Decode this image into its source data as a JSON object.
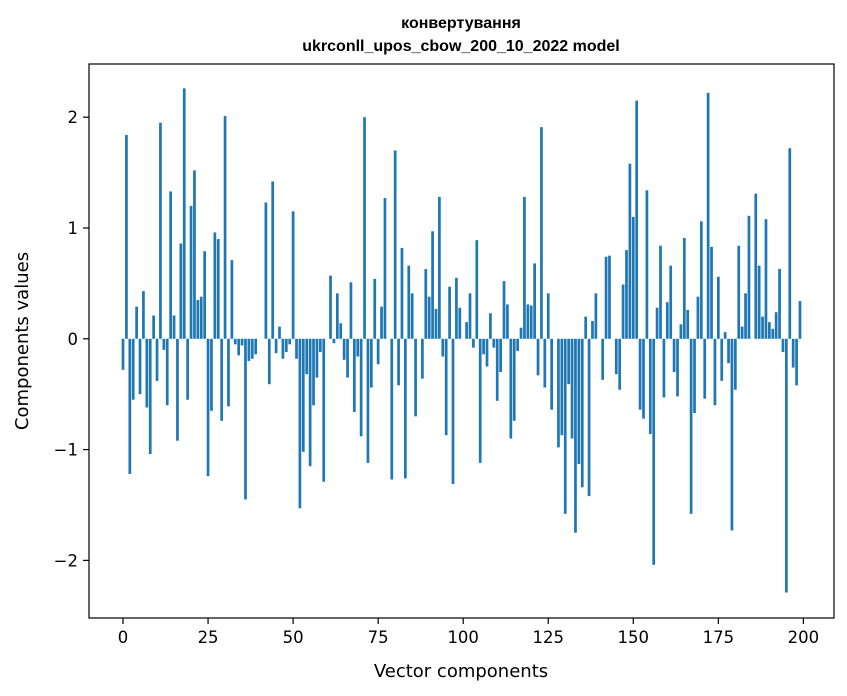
{
  "chart_data": {
    "type": "bar",
    "title_lines": [
      "конвертування",
      "ukrconll_upos_cbow_200_10_2022 model"
    ],
    "xlabel": "Vector components",
    "ylabel": "Components values",
    "xlim": [
      -10,
      209
    ],
    "ylim": [
      -2.52,
      2.48
    ],
    "xticks": [
      0,
      25,
      50,
      75,
      100,
      125,
      150,
      175,
      200
    ],
    "yticks": [
      -2,
      -1,
      0,
      1,
      2
    ],
    "ytick_labels": [
      "−2",
      "−1",
      "0",
      "1",
      "2"
    ],
    "bar_color": "#1f77b4",
    "values": [
      -0.28,
      1.84,
      -1.22,
      -0.55,
      0.29,
      -0.5,
      0.43,
      -0.62,
      -1.04,
      0.21,
      -0.38,
      1.95,
      -0.1,
      -0.6,
      1.33,
      0.21,
      -0.92,
      0.86,
      2.26,
      -0.55,
      1.2,
      1.52,
      0.35,
      0.38,
      0.79,
      -1.24,
      -0.65,
      0.96,
      0.9,
      -0.74,
      2.01,
      -0.61,
      0.71,
      -0.05,
      -0.15,
      -0.06,
      -1.45,
      -0.2,
      -0.18,
      -0.14,
      0.0,
      0.0,
      1.23,
      -0.41,
      1.42,
      -0.13,
      0.11,
      -0.18,
      -0.12,
      -0.05,
      1.15,
      -0.18,
      -1.53,
      -1.02,
      -0.32,
      -1.15,
      -0.6,
      -0.35,
      -0.12,
      -1.29,
      0.0,
      0.57,
      -0.04,
      0.41,
      0.14,
      -0.19,
      -0.35,
      0.51,
      -0.66,
      -0.16,
      -0.88,
      2.0,
      -1.12,
      -0.44,
      0.54,
      -0.23,
      0.29,
      1.27,
      0.0,
      -1.27,
      1.7,
      -0.42,
      0.82,
      -1.26,
      0.66,
      0.41,
      -0.7,
      0.0,
      -0.36,
      0.63,
      0.38,
      0.97,
      0.27,
      1.28,
      -0.16,
      -0.87,
      0.47,
      -1.31,
      0.55,
      0.28,
      0.0,
      0.15,
      0.41,
      -0.08,
      0.89,
      -1.12,
      -0.14,
      -0.25,
      0.23,
      -0.08,
      -0.56,
      -0.3,
      0.52,
      0.31,
      -0.9,
      -0.74,
      -0.11,
      0.1,
      1.28,
      0.31,
      0.3,
      0.68,
      -0.33,
      1.91,
      -0.44,
      0.41,
      -0.64,
      0.0,
      -0.98,
      -0.87,
      -1.58,
      -0.41,
      -0.9,
      -1.75,
      -1.13,
      -1.34,
      0.2,
      -1.42,
      0.16,
      0.41,
      0.0,
      -0.37,
      0.74,
      0.75,
      0.0,
      -0.32,
      -0.46,
      0.49,
      0.8,
      1.58,
      1.1,
      2.15,
      -0.64,
      -0.72,
      1.34,
      -0.86,
      -2.04,
      0.28,
      0.84,
      -0.53,
      0.33,
      0.66,
      -0.3,
      -0.52,
      0.13,
      0.91,
      0.26,
      -1.58,
      -0.67,
      0.38,
      1.06,
      -0.54,
      2.22,
      0.83,
      -0.6,
      0.56,
      -0.38,
      0.06,
      -0.22,
      -1.73,
      -0.46,
      0.84,
      0.11,
      0.41,
      1.11,
      0.0,
      1.31,
      0.66,
      0.2,
      1.08,
      0.15,
      0.09,
      0.24,
      0.63,
      -0.12,
      -2.29,
      1.72,
      -0.26,
      -0.42,
      0.34
    ]
  }
}
